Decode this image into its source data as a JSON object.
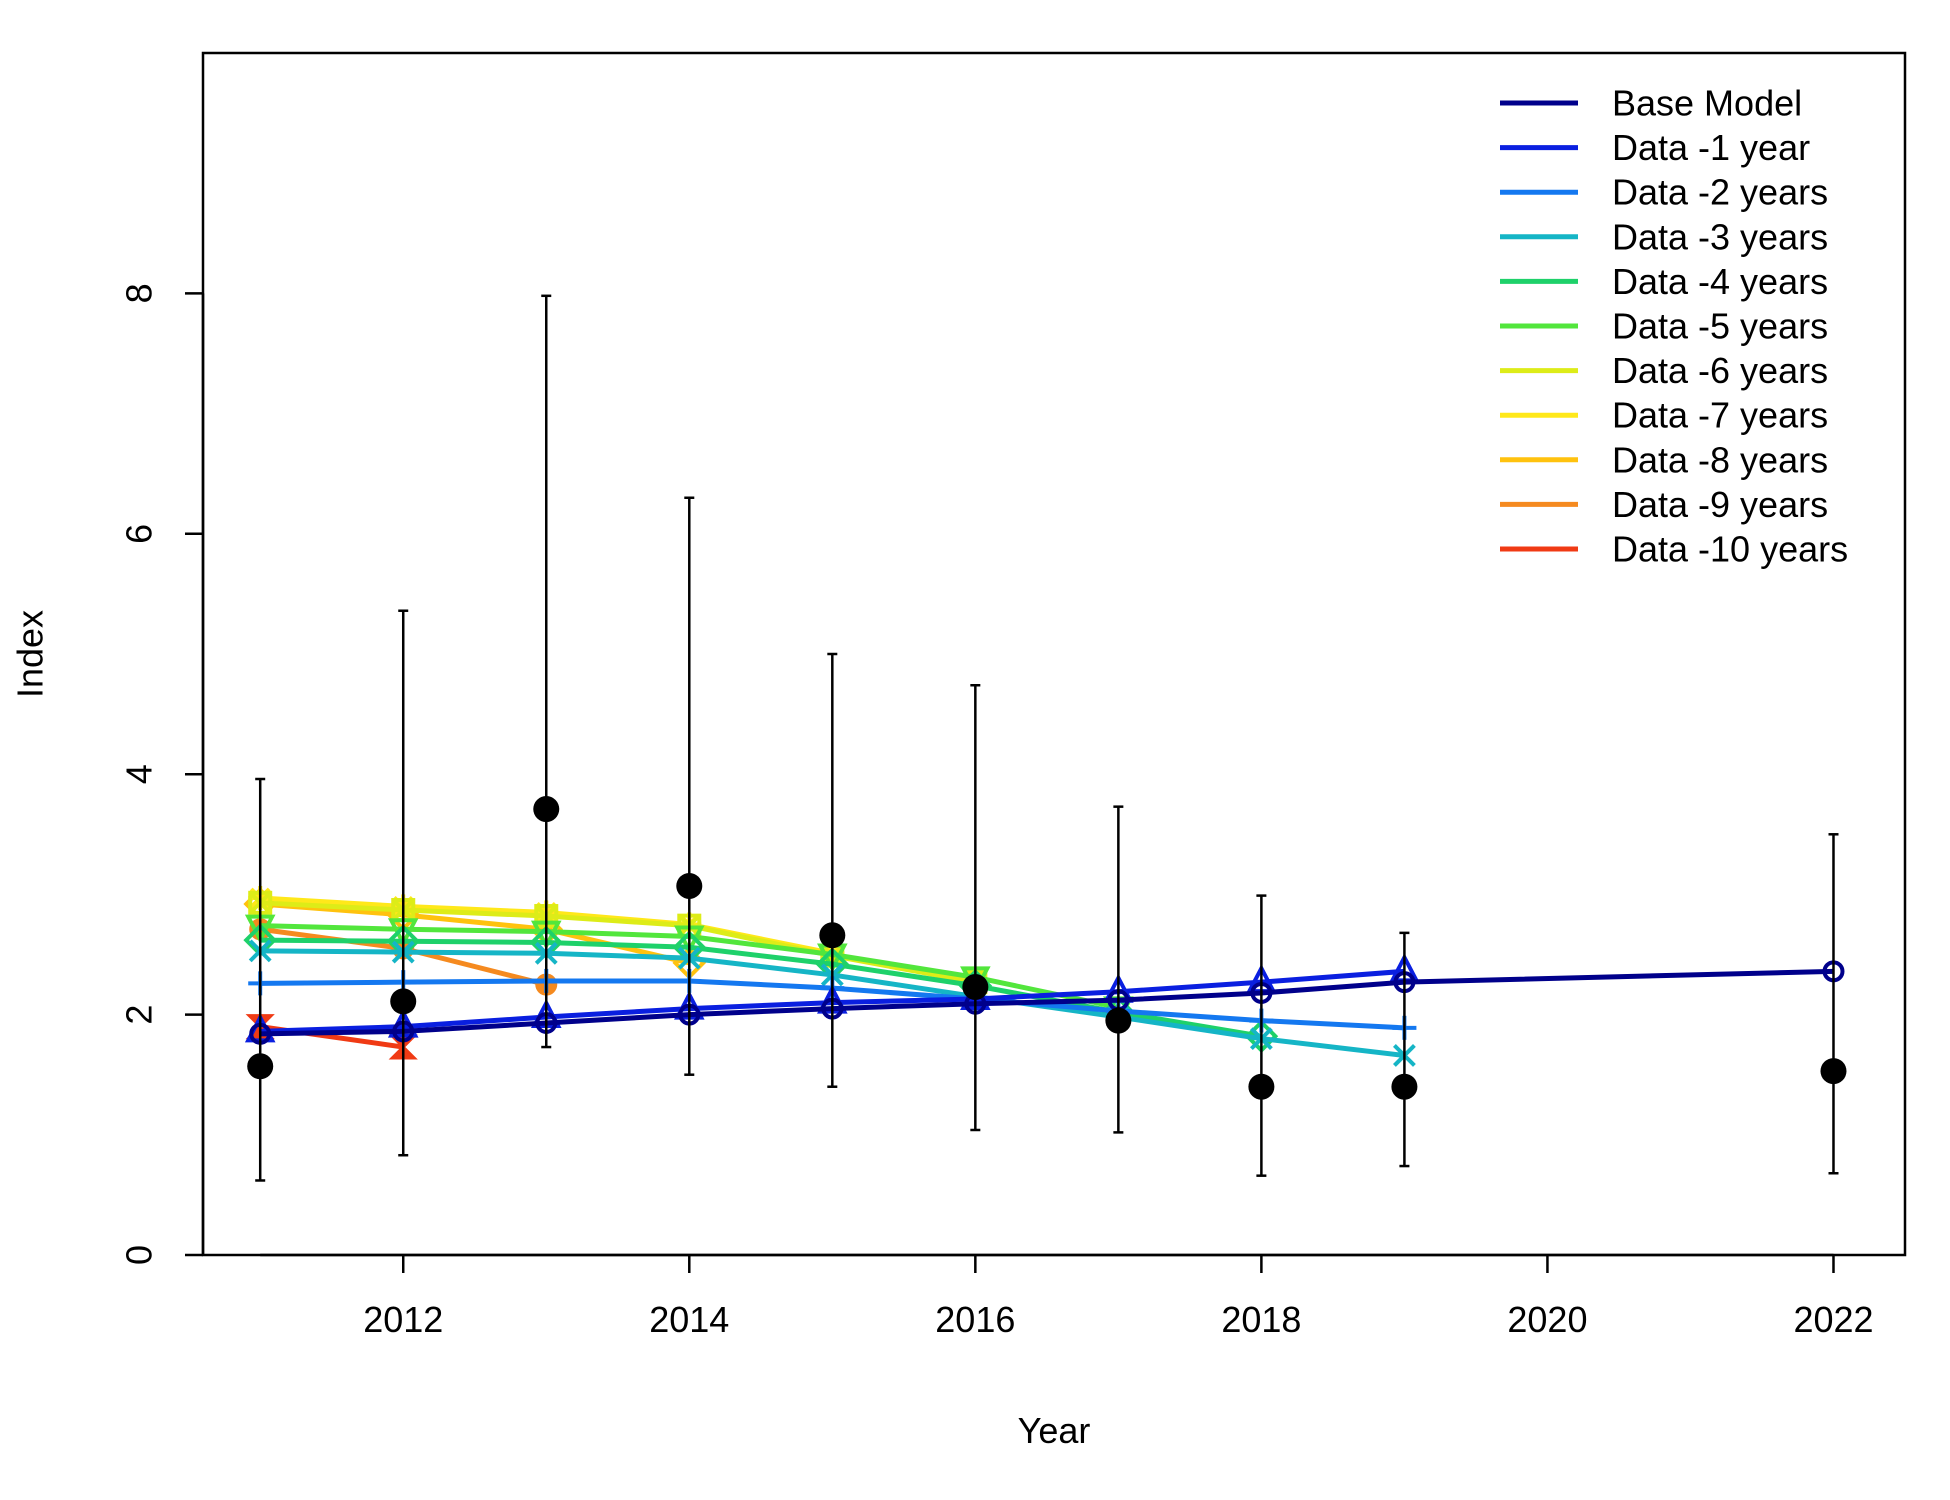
{
  "chart_data": {
    "type": "line",
    "title": "",
    "xlabel": "Year",
    "ylabel": "Index",
    "xlim": [
      2010.6,
      2022.5
    ],
    "ylim": [
      0,
      10
    ],
    "x_ticks": [
      2012,
      2014,
      2016,
      2018,
      2020,
      2022
    ],
    "y_ticks": [
      0,
      2,
      4,
      6,
      8
    ],
    "grid": false,
    "legend_position": "top-right",
    "observed": {
      "color": "#000000",
      "points": [
        {
          "x": 2011,
          "y": 1.57,
          "lo": 0.62,
          "hi": 3.96
        },
        {
          "x": 2012,
          "y": 2.11,
          "lo": 0.83,
          "hi": 5.36
        },
        {
          "x": 2013,
          "y": 3.71,
          "lo": 1.73,
          "hi": 7.98
        },
        {
          "x": 2014,
          "y": 3.07,
          "lo": 1.5,
          "hi": 6.3
        },
        {
          "x": 2015,
          "y": 2.66,
          "lo": 1.4,
          "hi": 5.0
        },
        {
          "x": 2016,
          "y": 2.23,
          "lo": 1.04,
          "hi": 4.74
        },
        {
          "x": 2017,
          "y": 1.95,
          "lo": 1.02,
          "hi": 3.73
        },
        {
          "x": 2018,
          "y": 1.4,
          "lo": 0.66,
          "hi": 2.99
        },
        {
          "x": 2019,
          "y": 1.4,
          "lo": 0.74,
          "hi": 2.68
        },
        {
          "x": 2022,
          "y": 1.53,
          "lo": 0.68,
          "hi": 3.5
        }
      ]
    },
    "series": [
      {
        "name": "Base Model",
        "color": "#00008B",
        "marker": "circle",
        "x": [
          2011,
          2012,
          2013,
          2014,
          2015,
          2016,
          2017,
          2018,
          2019,
          2022
        ],
        "y": [
          1.84,
          1.86,
          1.93,
          2.0,
          2.05,
          2.09,
          2.12,
          2.18,
          2.27,
          2.36
        ]
      },
      {
        "name": "Data -1 year",
        "color": "#0A1FE0",
        "marker": "triangle",
        "x": [
          2011,
          2012,
          2013,
          2014,
          2015,
          2016,
          2017,
          2018,
          2019
        ],
        "y": [
          1.86,
          1.9,
          1.98,
          2.05,
          2.1,
          2.13,
          2.19,
          2.27,
          2.36
        ]
      },
      {
        "name": "Data -2 years",
        "color": "#1478F0",
        "marker": "plus",
        "x": [
          2011,
          2012,
          2013,
          2014,
          2015,
          2016,
          2017,
          2018,
          2019
        ],
        "y": [
          2.26,
          2.27,
          2.28,
          2.28,
          2.22,
          2.13,
          2.03,
          1.95,
          1.89
        ]
      },
      {
        "name": "Data -3 years",
        "color": "#15B5C6",
        "marker": "x",
        "x": [
          2011,
          2012,
          2013,
          2014,
          2015,
          2016,
          2017,
          2018,
          2019
        ],
        "y": [
          2.53,
          2.52,
          2.51,
          2.47,
          2.33,
          2.15,
          1.98,
          1.8,
          1.66
        ]
      },
      {
        "name": "Data -4 years",
        "color": "#1ED16A",
        "marker": "diamond",
        "x": [
          2011,
          2012,
          2013,
          2014,
          2015,
          2016,
          2017,
          2018
        ],
        "y": [
          2.62,
          2.61,
          2.6,
          2.56,
          2.42,
          2.24,
          2.02,
          1.82
        ]
      },
      {
        "name": "Data -5 years",
        "color": "#52E63C",
        "marker": "triangle-down",
        "x": [
          2011,
          2012,
          2013,
          2014,
          2015,
          2016,
          2017
        ],
        "y": [
          2.74,
          2.71,
          2.69,
          2.65,
          2.5,
          2.31,
          2.06
        ]
      },
      {
        "name": "Data -6 years",
        "color": "#DDEC18",
        "marker": "square-x",
        "x": [
          2011,
          2012,
          2013,
          2014,
          2015,
          2016
        ],
        "y": [
          2.93,
          2.87,
          2.82,
          2.74,
          2.49,
          2.27
        ]
      },
      {
        "name": "Data -7 years",
        "color": "#FFE81A",
        "marker": "star",
        "x": [
          2011,
          2012,
          2013,
          2014,
          2015
        ],
        "y": [
          2.97,
          2.9,
          2.85,
          2.75,
          2.51
        ]
      },
      {
        "name": "Data -8 years",
        "color": "#FFC20E",
        "marker": "diamond",
        "x": [
          2011,
          2012,
          2013,
          2014
        ],
        "y": [
          2.92,
          2.83,
          2.71,
          2.43
        ]
      },
      {
        "name": "Data -9 years",
        "color": "#F58A1F",
        "marker": "circle-filled",
        "x": [
          2011,
          2012,
          2013
        ],
        "y": [
          2.71,
          2.55,
          2.25
        ]
      },
      {
        "name": "Data -10 years",
        "color": "#F03A14",
        "marker": "hourglass",
        "x": [
          2011,
          2012
        ],
        "y": [
          1.9,
          1.73
        ]
      }
    ]
  }
}
